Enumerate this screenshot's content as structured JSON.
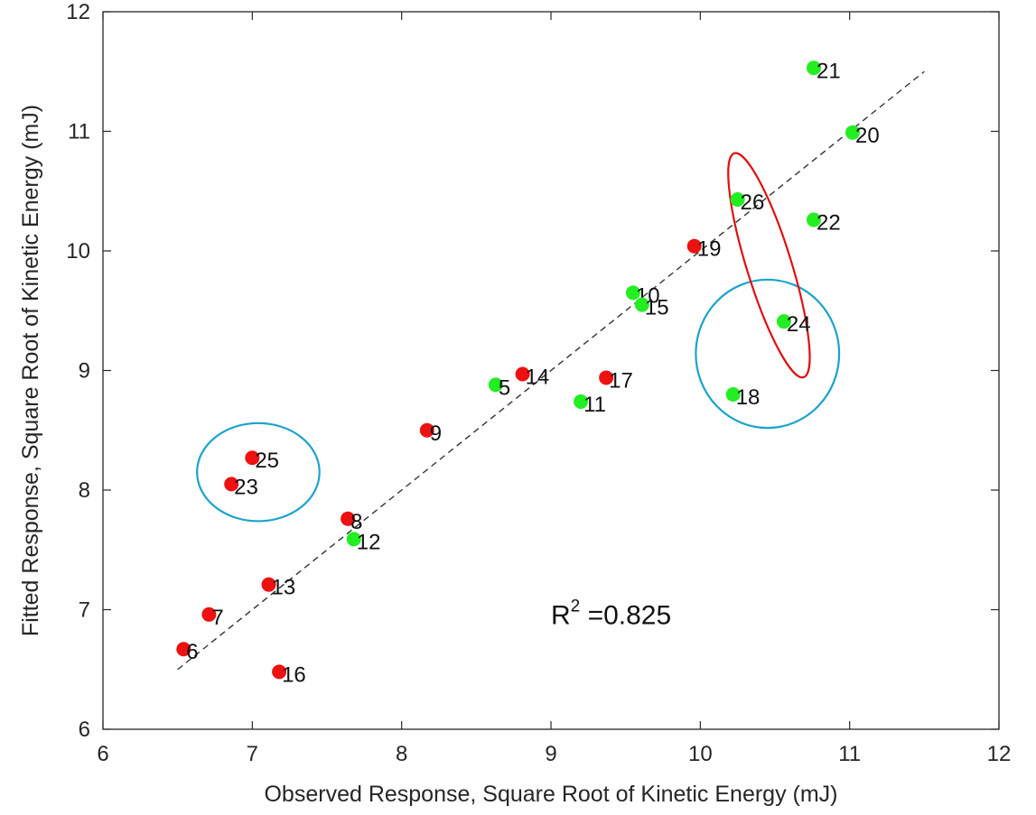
{
  "chart_data": {
    "type": "scatter",
    "title": "",
    "xlabel": "Observed Response, Square Root of Kinetic Energy (mJ)",
    "ylabel": "Fitted Response, Square Root of Kinetic Energy (mJ)",
    "xlim": [
      6,
      12
    ],
    "ylim": [
      6,
      12
    ],
    "xticks": [
      6,
      7,
      8,
      9,
      10,
      11,
      12
    ],
    "yticks": [
      6,
      7,
      8,
      9,
      10,
      11,
      12
    ],
    "xtick_labels": [
      "6",
      "7",
      "8",
      "9",
      "10",
      "11",
      "12"
    ],
    "ytick_labels": [
      "6",
      "7",
      "8",
      "9",
      "10",
      "11",
      "12"
    ],
    "grid": false,
    "annotation": {
      "r2_base": "R",
      "r2_exp": "2",
      "r2_value": " =0.825"
    },
    "fit_line": {
      "x": [
        6.5,
        11.5
      ],
      "y": [
        6.5,
        11.5
      ],
      "style": "dashed"
    },
    "colors": {
      "red": "#ee1111",
      "green": "#22ee22",
      "circle": "#1aa3cc",
      "ellipse_red": "#dd1111",
      "fit": "#333333"
    },
    "points": [
      {
        "label": "5",
        "x": 8.63,
        "y": 8.88,
        "color": "green"
      },
      {
        "label": "6",
        "x": 6.54,
        "y": 6.67,
        "color": "red"
      },
      {
        "label": "7",
        "x": 6.71,
        "y": 6.96,
        "color": "red"
      },
      {
        "label": "8",
        "x": 7.64,
        "y": 7.76,
        "color": "red"
      },
      {
        "label": "9",
        "x": 8.17,
        "y": 8.5,
        "color": "red"
      },
      {
        "label": "10",
        "x": 9.55,
        "y": 9.65,
        "color": "green"
      },
      {
        "label": "11",
        "x": 9.2,
        "y": 8.74,
        "color": "green"
      },
      {
        "label": "12",
        "x": 7.68,
        "y": 7.59,
        "color": "green"
      },
      {
        "label": "13",
        "x": 7.11,
        "y": 7.21,
        "color": "red"
      },
      {
        "label": "14",
        "x": 8.81,
        "y": 8.97,
        "color": "red"
      },
      {
        "label": "15",
        "x": 9.61,
        "y": 9.55,
        "color": "green"
      },
      {
        "label": "16",
        "x": 7.18,
        "y": 6.48,
        "color": "red"
      },
      {
        "label": "17",
        "x": 9.37,
        "y": 8.94,
        "color": "red"
      },
      {
        "label": "18",
        "x": 10.22,
        "y": 8.8,
        "color": "green"
      },
      {
        "label": "19",
        "x": 9.96,
        "y": 10.04,
        "color": "red"
      },
      {
        "label": "20",
        "x": 11.02,
        "y": 10.99,
        "color": "green"
      },
      {
        "label": "21",
        "x": 10.76,
        "y": 11.53,
        "color": "green"
      },
      {
        "label": "22",
        "x": 10.76,
        "y": 10.26,
        "color": "green"
      },
      {
        "label": "23",
        "x": 6.86,
        "y": 8.05,
        "color": "red"
      },
      {
        "label": "24",
        "x": 10.56,
        "y": 9.41,
        "color": "green"
      },
      {
        "label": "25",
        "x": 7.0,
        "y": 8.27,
        "color": "red"
      },
      {
        "label": "26",
        "x": 10.25,
        "y": 10.43,
        "color": "green"
      }
    ],
    "highlights": [
      {
        "shape": "ellipse",
        "color": "circle",
        "cx": 7.04,
        "cy": 8.15,
        "rx": 0.41,
        "ry": 0.41,
        "angle": 0
      },
      {
        "shape": "ellipse",
        "color": "circle",
        "cx": 10.45,
        "cy": 9.14,
        "rx": 0.48,
        "ry": 0.62,
        "angle": 0
      },
      {
        "shape": "ellipse",
        "color": "ellipse_red",
        "cx": 10.46,
        "cy": 9.88,
        "rx": 0.15,
        "ry": 0.98,
        "angle": -0.3
      }
    ]
  }
}
